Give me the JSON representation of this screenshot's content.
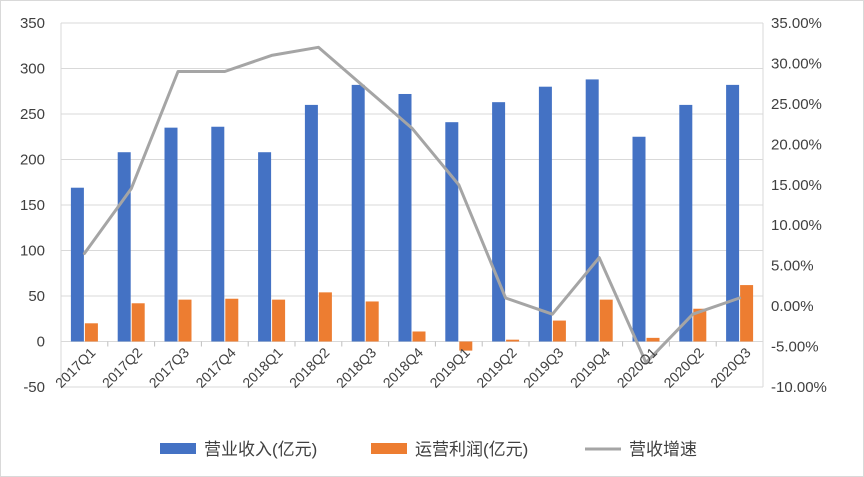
{
  "chart_data": {
    "type": "bar",
    "title": "",
    "xlabel": "",
    "ylabel": "",
    "categories": [
      "2017Q1",
      "2017Q2",
      "2017Q3",
      "2017Q4",
      "2018Q1",
      "2018Q2",
      "2018Q3",
      "2018Q4",
      "2019Q1",
      "2019Q2",
      "2019Q3",
      "2019Q4",
      "2020Q1",
      "2020Q2",
      "2020Q3"
    ],
    "y_left": {
      "min": -50,
      "max": 350,
      "step": 50,
      "ticks": [
        "-50",
        "0",
        "50",
        "100",
        "150",
        "200",
        "250",
        "300",
        "350"
      ]
    },
    "y_right": {
      "min": -10,
      "max": 35,
      "step": 5,
      "ticks": [
        "-10.00%",
        "-5.00%",
        "0.00%",
        "5.00%",
        "10.00%",
        "15.00%",
        "20.00%",
        "25.00%",
        "30.00%",
        "35.00%"
      ]
    },
    "grid": true,
    "legend_position": "bottom",
    "series": [
      {
        "name": "营业收入(亿元)",
        "type": "bar",
        "axis": "left",
        "color": "#4472C4",
        "values": [
          169,
          208,
          235,
          236,
          208,
          260,
          282,
          272,
          241,
          263,
          280,
          288,
          225,
          260,
          282
        ]
      },
      {
        "name": "运营利润(亿元)",
        "type": "bar",
        "axis": "left",
        "color": "#ED7D31",
        "values": [
          20,
          42,
          46,
          47,
          46,
          54,
          44,
          11,
          -10,
          2,
          23,
          46,
          4,
          36,
          62
        ]
      },
      {
        "name": "营收增速",
        "type": "line",
        "axis": "right",
        "color": "#A5A5A5",
        "values": [
          6.5,
          14.5,
          29,
          29,
          31,
          32,
          27,
          22,
          15,
          1,
          -1,
          6,
          -7,
          -1,
          1
        ]
      }
    ]
  }
}
